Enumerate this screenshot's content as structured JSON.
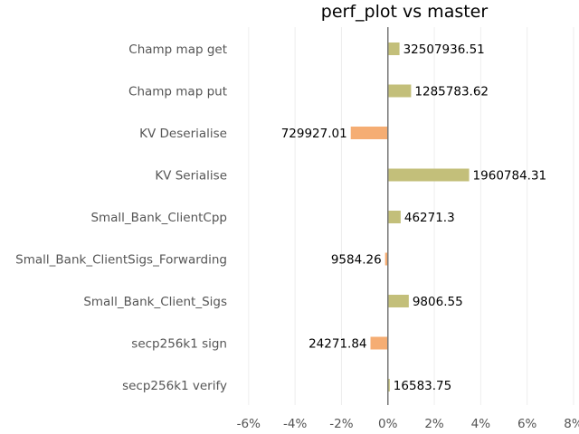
{
  "chart_data": {
    "type": "bar",
    "orientation": "horizontal",
    "title": "perf_plot vs master",
    "xlabel": "",
    "ylabel": "",
    "xlim": [
      -6.5,
      8.0
    ],
    "x_ticks": [
      -6,
      -4,
      -2,
      0,
      2,
      4,
      6,
      8
    ],
    "x_tick_labels": [
      "-6%",
      "-4%",
      "-2%",
      "0%",
      "2%",
      "4%",
      "6%",
      "8%"
    ],
    "grid": "vertical",
    "categories": [
      "Champ map get",
      "Champ map put",
      "KV Deserialise",
      "KV Serialise",
      "Small_Bank_ClientCpp",
      "Small_Bank_ClientSigs_Forwarding",
      "Small_Bank_Client_Sigs",
      "secp256k1 sign",
      "secp256k1 verify"
    ],
    "values": [
      0.5,
      1.0,
      -1.6,
      3.5,
      0.55,
      -0.12,
      0.9,
      -0.75,
      0.08
    ],
    "value_labels": [
      "32507936.51",
      "1285783.62",
      "729927.01",
      "1960784.31",
      "46271.3",
      "9584.26",
      "9806.55",
      "24271.84",
      "16583.75"
    ],
    "colors": {
      "positive": "#c3bf7a",
      "negative": "#f5ad73",
      "zero_line": "#777777",
      "grid": "#eeeeee"
    }
  }
}
